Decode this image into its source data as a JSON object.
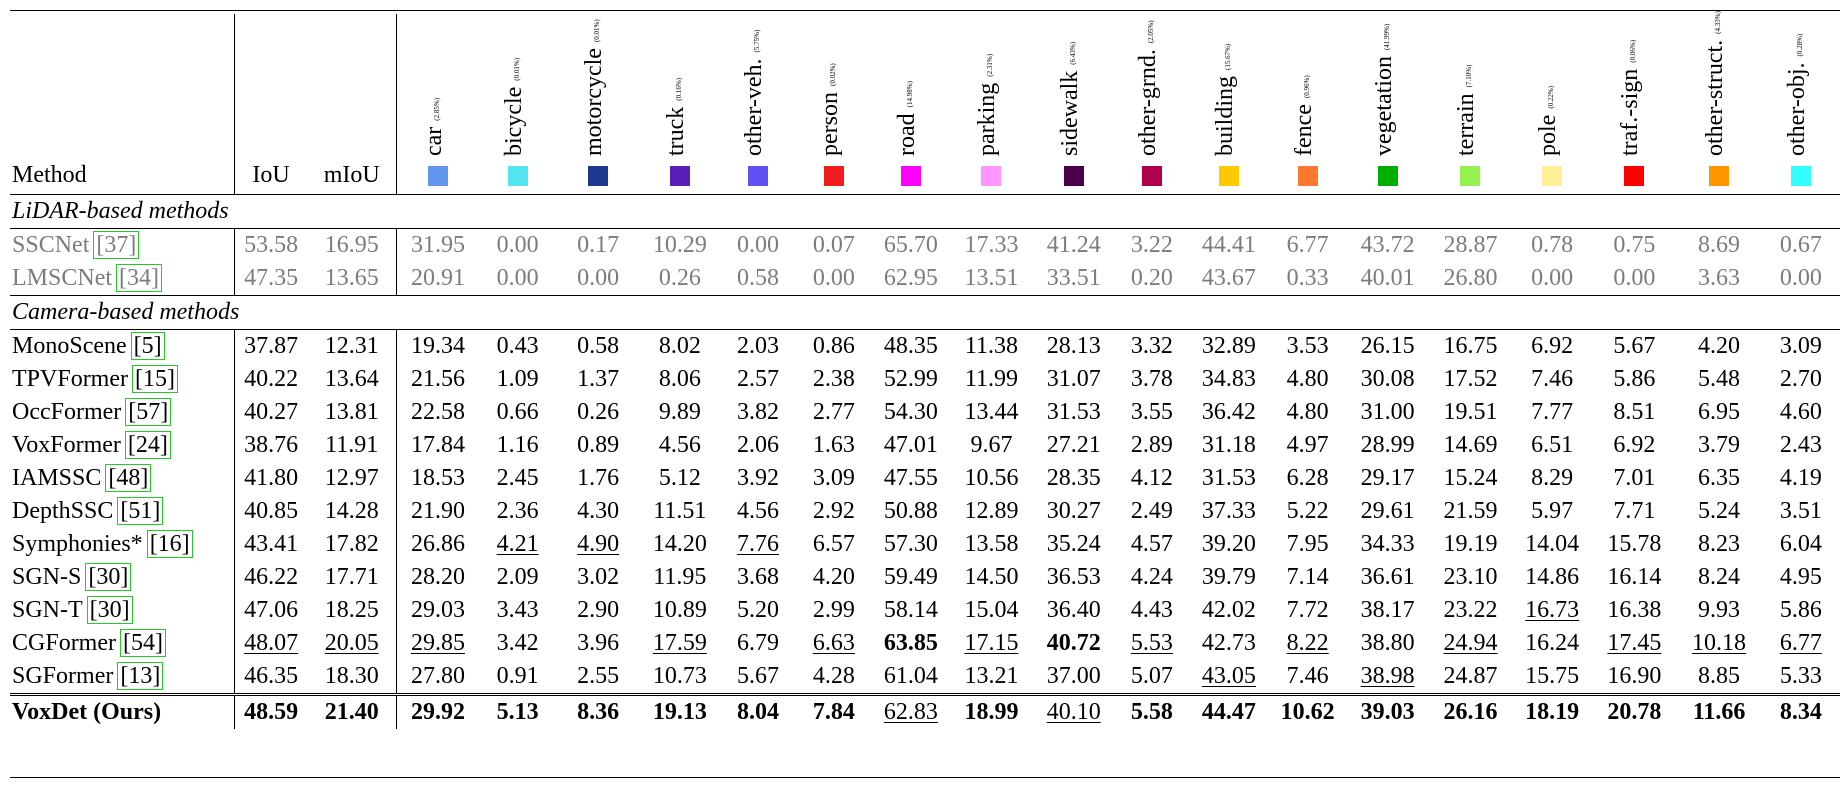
{
  "table": {
    "header": {
      "method": "Method",
      "iou": "IoU",
      "miou": "mIoU"
    },
    "classes": [
      {
        "name": "car",
        "pct": "(2.85%)",
        "color": "#6495ED"
      },
      {
        "name": "bicycle",
        "pct": "(0.01%)",
        "color": "#53E6F2"
      },
      {
        "name": "motorcycle",
        "pct": "(0.01%)",
        "color": "#1E3A8F"
      },
      {
        "name": "truck",
        "pct": "(0.16%)",
        "color": "#5A1FB8"
      },
      {
        "name": "other-veh.",
        "pct": "(5.75%)",
        "color": "#6150F2"
      },
      {
        "name": "person",
        "pct": "(0.02%)",
        "color": "#F01E1E"
      },
      {
        "name": "road",
        "pct": "(14.98%)",
        "color": "#FF00FF"
      },
      {
        "name": "parking",
        "pct": "(2.31%)",
        "color": "#FF96FF"
      },
      {
        "name": "sidewalk",
        "pct": "(6.43%)",
        "color": "#4B004B"
      },
      {
        "name": "other-grnd.",
        "pct": "(2.05%)",
        "color": "#AF0050"
      },
      {
        "name": "building",
        "pct": "(15.67%)",
        "color": "#FFC800"
      },
      {
        "name": "fence",
        "pct": "(0.96%)",
        "color": "#FF7832"
      },
      {
        "name": "vegetation",
        "pct": "(41.99%)",
        "color": "#00AF00"
      },
      {
        "name": "terrain",
        "pct": "(7.10%)",
        "color": "#96F050"
      },
      {
        "name": "pole",
        "pct": "(0.22%)",
        "color": "#FFF096"
      },
      {
        "name": "traf.-sign",
        "pct": "(0.06%)",
        "color": "#FF0000"
      },
      {
        "name": "other-struct.",
        "pct": "(4.33%)",
        "color": "#FF9600"
      },
      {
        "name": "other-obj.",
        "pct": "(0.28%)",
        "color": "#32FFFF"
      }
    ],
    "sections": [
      {
        "title": "LiDAR-based methods",
        "gray": true,
        "rows": [
          {
            "method": "SSCNet",
            "ref": "37",
            "values": [
              "53.58",
              "16.95",
              "31.95",
              "0.00",
              "0.17",
              "10.29",
              "0.00",
              "0.07",
              "65.70",
              "17.33",
              "41.24",
              "3.22",
              "44.41",
              "6.77",
              "43.72",
              "28.87",
              "0.78",
              "0.75",
              "8.69",
              "0.67"
            ]
          },
          {
            "method": "LMSCNet",
            "ref": "34",
            "values": [
              "47.35",
              "13.65",
              "20.91",
              "0.00",
              "0.00",
              "0.26",
              "0.58",
              "0.00",
              "62.95",
              "13.51",
              "33.51",
              "0.20",
              "43.67",
              "0.33",
              "40.01",
              "26.80",
              "0.00",
              "0.00",
              "3.63",
              "0.00"
            ]
          }
        ]
      },
      {
        "title": "Camera-based methods",
        "gray": false,
        "rows": [
          {
            "method": "MonoScene",
            "ref": "5",
            "values": [
              "37.87",
              "12.31",
              "19.34",
              "0.43",
              "0.58",
              "8.02",
              "2.03",
              "0.86",
              "48.35",
              "11.38",
              "28.13",
              "3.32",
              "32.89",
              "3.53",
              "26.15",
              "16.75",
              "6.92",
              "5.67",
              "4.20",
              "3.09"
            ]
          },
          {
            "method": "TPVFormer",
            "ref": "15",
            "values": [
              "40.22",
              "13.64",
              "21.56",
              "1.09",
              "1.37",
              "8.06",
              "2.57",
              "2.38",
              "52.99",
              "11.99",
              "31.07",
              "3.78",
              "34.83",
              "4.80",
              "30.08",
              "17.52",
              "7.46",
              "5.86",
              "5.48",
              "2.70"
            ]
          },
          {
            "method": "OccFormer",
            "ref": "57",
            "values": [
              "40.27",
              "13.81",
              "22.58",
              "0.66",
              "0.26",
              "9.89",
              "3.82",
              "2.77",
              "54.30",
              "13.44",
              "31.53",
              "3.55",
              "36.42",
              "4.80",
              "31.00",
              "19.51",
              "7.77",
              "8.51",
              "6.95",
              "4.60"
            ]
          },
          {
            "method": "VoxFormer",
            "ref": "24",
            "values": [
              "38.76",
              "11.91",
              "17.84",
              "1.16",
              "0.89",
              "4.56",
              "2.06",
              "1.63",
              "47.01",
              "9.67",
              "27.21",
              "2.89",
              "31.18",
              "4.97",
              "28.99",
              "14.69",
              "6.51",
              "6.92",
              "3.79",
              "2.43"
            ]
          },
          {
            "method": "IAMSSC",
            "ref": "48",
            "values": [
              "41.80",
              "12.97",
              "18.53",
              "2.45",
              "1.76",
              "5.12",
              "3.92",
              "3.09",
              "47.55",
              "10.56",
              "28.35",
              "4.12",
              "31.53",
              "6.28",
              "29.17",
              "15.24",
              "8.29",
              "7.01",
              "6.35",
              "4.19"
            ]
          },
          {
            "method": "DepthSSC",
            "ref": "51",
            "values": [
              "40.85",
              "14.28",
              "21.90",
              "2.36",
              "4.30",
              "11.51",
              "4.56",
              "2.92",
              "50.88",
              "12.89",
              "30.27",
              "2.49",
              "37.33",
              "5.22",
              "29.61",
              "21.59",
              "5.97",
              "7.71",
              "5.24",
              "3.51"
            ]
          },
          {
            "method": "Symphonies*",
            "ref": "16",
            "values": [
              "43.41",
              "17.82",
              "26.86",
              "4.21",
              "4.90",
              "14.20",
              "7.76",
              "6.57",
              "57.30",
              "13.58",
              "35.24",
              "4.57",
              "39.20",
              "7.95",
              "34.33",
              "19.19",
              "14.04",
              "15.78",
              "8.23",
              "6.04"
            ],
            "underline": [
              3,
              4,
              6
            ]
          },
          {
            "method": "SGN-S",
            "ref": "30",
            "values": [
              "46.22",
              "17.71",
              "28.20",
              "2.09",
              "3.02",
              "11.95",
              "3.68",
              "4.20",
              "59.49",
              "14.50",
              "36.53",
              "4.24",
              "39.79",
              "7.14",
              "36.61",
              "23.10",
              "14.86",
              "16.14",
              "8.24",
              "4.95"
            ]
          },
          {
            "method": "SGN-T",
            "ref": "30",
            "values": [
              "47.06",
              "18.25",
              "29.03",
              "3.43",
              "2.90",
              "10.89",
              "5.20",
              "2.99",
              "58.14",
              "15.04",
              "36.40",
              "4.43",
              "42.02",
              "7.72",
              "38.17",
              "23.22",
              "16.73",
              "16.38",
              "9.93",
              "5.86"
            ],
            "underline": [
              16
            ]
          },
          {
            "method": "CGFormer",
            "ref": "54",
            "values": [
              "48.07",
              "20.05",
              "29.85",
              "3.42",
              "3.96",
              "17.59",
              "6.79",
              "6.63",
              "63.85",
              "17.15",
              "40.72",
              "5.53",
              "42.73",
              "8.22",
              "38.80",
              "24.94",
              "16.24",
              "17.45",
              "10.18",
              "6.77"
            ],
            "underline": [
              0,
              1,
              2,
              5,
              7,
              9,
              11,
              13,
              15,
              17,
              18,
              19
            ],
            "bold": [
              8,
              10
            ]
          },
          {
            "method": "SGFormer",
            "ref": "13",
            "values": [
              "46.35",
              "18.30",
              "27.80",
              "0.91",
              "2.55",
              "10.73",
              "5.67",
              "4.28",
              "61.04",
              "13.21",
              "37.00",
              "5.07",
              "43.05",
              "7.46",
              "38.98",
              "24.87",
              "15.75",
              "16.90",
              "8.85",
              "5.33"
            ],
            "underline": [
              12,
              14
            ]
          }
        ]
      }
    ],
    "ours": {
      "method": "VoxDet (Ours)",
      "values": [
        "48.59",
        "21.40",
        "29.92",
        "5.13",
        "8.36",
        "19.13",
        "8.04",
        "7.84",
        "62.83",
        "18.99",
        "40.10",
        "5.58",
        "44.47",
        "10.62",
        "39.03",
        "26.16",
        "18.19",
        "20.78",
        "11.66",
        "8.34"
      ],
      "underline": [
        8,
        10
      ]
    }
  }
}
